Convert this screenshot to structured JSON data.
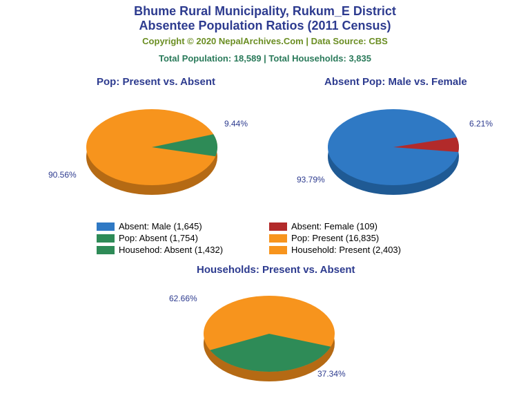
{
  "header": {
    "title_line1": "Bhume Rural Municipality, Rukum_E District",
    "title_line2": "Absentee Population Ratios (2011 Census)",
    "title_color": "#2d3b8f",
    "title_fontsize": 18,
    "copyright": "Copyright © 2020 NepalArchives.Com | Data Source: CBS",
    "copyright_color": "#6b8e23",
    "copyright_fontsize": 13,
    "totals": "Total Population: 18,589 | Total Households: 3,835",
    "totals_color": "#2a7a5a",
    "totals_fontsize": 13
  },
  "charts": {
    "pop": {
      "title": "Pop: Present vs. Absent",
      "title_color": "#2d3b8f",
      "title_fontsize": 15,
      "slices": [
        {
          "label": "90.56%",
          "value": 90.56,
          "color": "#f7941d"
        },
        {
          "label": "9.44%",
          "value": 9.44,
          "color": "#2e8b57"
        }
      ],
      "side_color": "#b56a14",
      "label_color": "#2d3b8f"
    },
    "absent_mf": {
      "title": "Absent Pop: Male vs. Female",
      "title_color": "#2d3b8f",
      "title_fontsize": 15,
      "slices": [
        {
          "label": "93.79%",
          "value": 93.79,
          "color": "#2f79c4"
        },
        {
          "label": "6.21%",
          "value": 6.21,
          "color": "#b22a2a"
        }
      ],
      "side_color": "#1f5a94",
      "label_color": "#2d3b8f"
    },
    "households": {
      "title": "Households: Present vs. Absent",
      "title_color": "#2d3b8f",
      "title_fontsize": 15,
      "slices": [
        {
          "label": "62.66%",
          "value": 62.66,
          "color": "#f7941d"
        },
        {
          "label": "37.34%",
          "value": 37.34,
          "color": "#2e8b57"
        }
      ],
      "side_color": "#b56a14",
      "label_color": "#2d3b8f"
    }
  },
  "legend": {
    "items": [
      {
        "label": "Absent: Male (1,645)",
        "color": "#2f79c4"
      },
      {
        "label": "Absent: Female (109)",
        "color": "#b22a2a"
      },
      {
        "label": "Pop: Absent (1,754)",
        "color": "#2e8b57"
      },
      {
        "label": "Pop: Present (16,835)",
        "color": "#f7941d"
      },
      {
        "label": "Househod: Absent (1,432)",
        "color": "#2e8b57"
      },
      {
        "label": "Household: Present (2,403)",
        "color": "#f7941d"
      }
    ],
    "text_color": "#000000"
  }
}
